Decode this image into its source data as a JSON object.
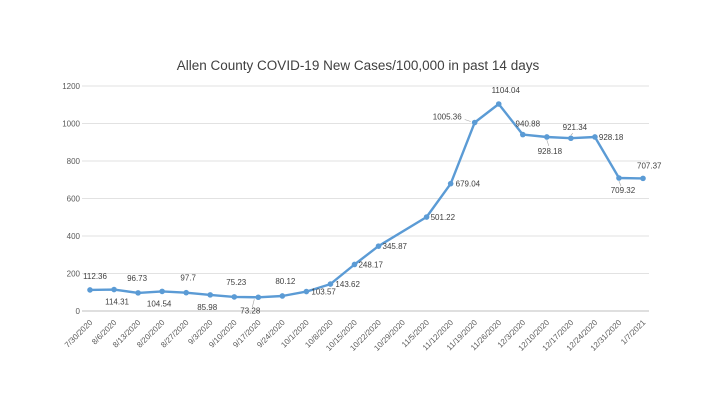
{
  "chart_data": {
    "type": "line",
    "title": "Allen County COVID-19 New Cases/100,000 in past 14 days",
    "xlabel": "",
    "ylabel": "",
    "ylim": [
      0,
      1200
    ],
    "yticks": [
      "0",
      "200",
      "400",
      "600",
      "800",
      "1000",
      "1200"
    ],
    "grid": true,
    "legend": "none",
    "line_color": "#5b9bd5",
    "categories": [
      "7/30/2020",
      "8/6/2020",
      "8/13/2020",
      "8/20/2020",
      "8/27/2020",
      "9/3/2020",
      "9/10/2020",
      "9/17/2020",
      "9/24/2020",
      "10/1/2020",
      "10/8/2020",
      "10/15/2020",
      "10/22/2020",
      "10/29/2020",
      "11/5/2020",
      "11/12/2020",
      "11/19/2020",
      "11/26/2020",
      "12/3/2020",
      "12/10/2020",
      "12/17/2020",
      "12/24/2020",
      "12/31/2020",
      "1/7/2021"
    ],
    "values": [
      112.36,
      114.31,
      96.73,
      104.54,
      97.7,
      85.98,
      75.23,
      73.28,
      80.12,
      103.57,
      143.62,
      248.17,
      345.87,
      null,
      501.22,
      679.04,
      1005.36,
      1104.04,
      940.88,
      928.18,
      921.34,
      928.18,
      709.32,
      707.37
    ],
    "data_labels": [
      "112.36",
      "114.31",
      "96.73",
      "104.54",
      "97.7",
      "85.98",
      "75.23",
      "73.28",
      "80.12",
      "103.57",
      "143.62",
      "248.17",
      "345.87",
      "",
      "501.22",
      "679.04",
      "1005.36",
      "1104.04",
      "940.88",
      "928.18",
      "921.34",
      "928.18",
      "709.32",
      "707.37"
    ]
  }
}
